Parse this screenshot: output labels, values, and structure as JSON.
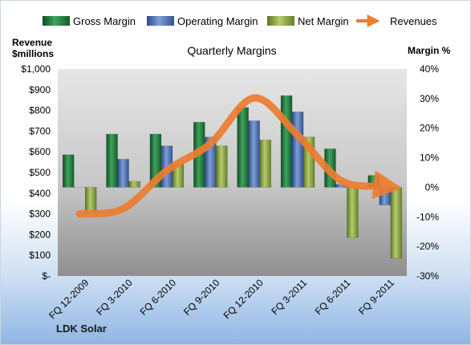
{
  "chart_data": {
    "type": "bar",
    "title": "Quarterly Margins",
    "company": "LDK Solar",
    "categories": [
      "FQ 12-2009",
      "FQ 3-2010",
      "FQ 6-2010",
      "FQ 9-2010",
      "FQ 12-2010",
      "FQ 3-2011",
      "FQ 6-2011",
      "FQ 9-2011"
    ],
    "series": [
      {
        "name": "Gross Margin",
        "type": "bar",
        "axis": "right",
        "unit": "%",
        "values": [
          11,
          18,
          18,
          22,
          27,
          31,
          13,
          4
        ],
        "color": "#1e7a3c"
      },
      {
        "name": "Operating Margin",
        "type": "bar",
        "axis": "right",
        "unit": "%",
        "values": [
          0,
          9.5,
          14,
          17,
          22.5,
          25.5,
          1,
          -6
        ],
        "color": "#4a6fb5"
      },
      {
        "name": "Net Margin",
        "type": "bar",
        "axis": "right",
        "unit": "%",
        "values": [
          -8.5,
          2,
          8,
          14,
          16,
          17,
          -17,
          -24
        ],
        "color": "#8aa63c"
      },
      {
        "name": "Revenues",
        "type": "line",
        "axis": "left",
        "unit": "$millions",
        "values": [
          300,
          325,
          510,
          640,
          860,
          680,
          460,
          435
        ],
        "color": "#ed7d31"
      }
    ],
    "y_left": {
      "label_line1": "Revenue",
      "label_line2": "$millions",
      "range": [
        0,
        1000
      ],
      "ticks": [
        "$-",
        "$100",
        "$200",
        "$300",
        "$400",
        "$500",
        "$600",
        "$700",
        "$800",
        "$900",
        "$1,000"
      ]
    },
    "y_right": {
      "label": "Margin %",
      "range": [
        -30,
        40
      ],
      "ticks": [
        "-30%",
        "-20%",
        "-10%",
        "0%",
        "10%",
        "20%",
        "30%",
        "40%"
      ]
    },
    "legend_position": "top",
    "grid": false
  }
}
